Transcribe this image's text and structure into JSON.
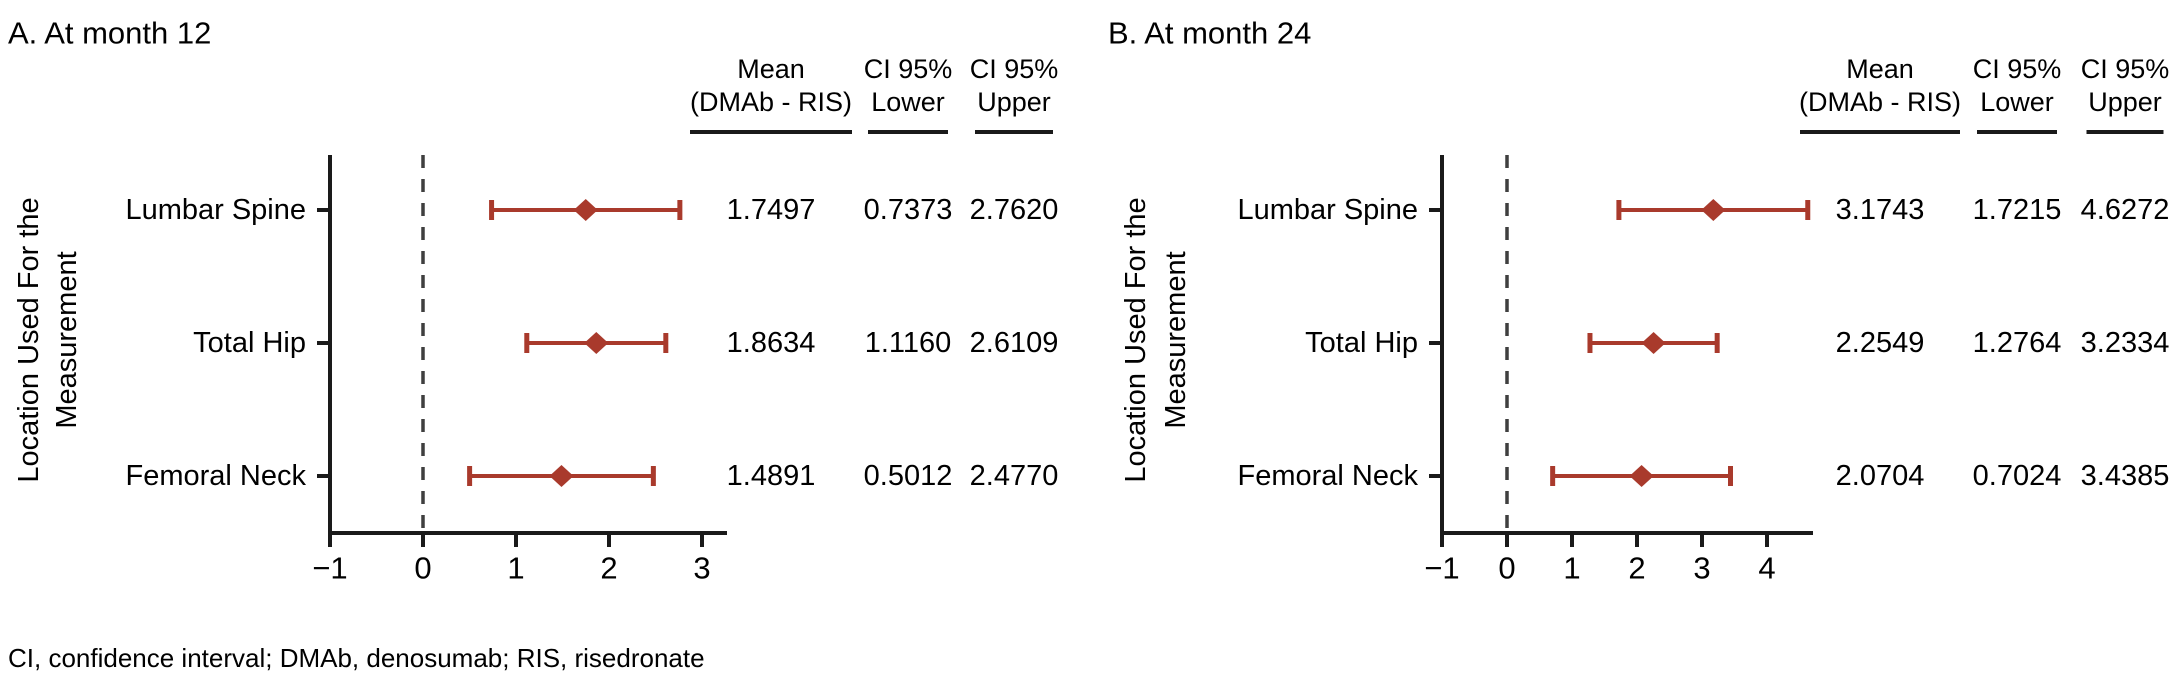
{
  "figure": {
    "footnote": "CI, confidence interval; DMAb, denosumab; RIS, risedronate",
    "y_axis_label_line1": "Location Used For the",
    "y_axis_label_line2": "Measurement",
    "columns": {
      "mean_line1": "Mean",
      "mean_line2": "(DMAb - RIS)",
      "lower_line1": "CI 95%",
      "lower_line2": "Lower",
      "upper_line1": "CI 95%",
      "upper_line2": "Upper"
    },
    "colors": {
      "marker": "#A93A2C",
      "axis": "#1a1a1a",
      "zero_line": "#3f3f3f",
      "text": "#000000"
    }
  },
  "chart_data": [
    {
      "type": "forest",
      "title": "A. At month 12",
      "categories": [
        "Lumbar Spine",
        "Total Hip",
        "Femoral Neck"
      ],
      "means": [
        1.7497,
        1.8634,
        1.4891
      ],
      "ci_lower": [
        0.7373,
        1.116,
        0.5012
      ],
      "ci_upper": [
        2.762,
        2.6109,
        2.477
      ],
      "mean_labels": [
        "1.7497",
        "1.8634",
        "1.4891"
      ],
      "lower_labels": [
        "0.7373",
        "1.1160",
        "0.5012"
      ],
      "upper_labels": [
        "2.7620",
        "2.6109",
        "2.4770"
      ],
      "x_ticks": [
        -1,
        0,
        1,
        2,
        3
      ],
      "x_tick_labels": [
        "−1",
        "0",
        "1",
        "2",
        "3"
      ],
      "zero_reference": 0,
      "xlim": [
        -1,
        3.3
      ],
      "grid": false,
      "legend": "none"
    },
    {
      "type": "forest",
      "title": "B. At month 24",
      "categories": [
        "Lumbar Spine",
        "Total Hip",
        "Femoral Neck"
      ],
      "means": [
        3.1743,
        2.2549,
        2.0704
      ],
      "ci_lower": [
        1.7215,
        1.2764,
        0.7024
      ],
      "ci_upper": [
        4.6272,
        3.2334,
        3.4385
      ],
      "mean_labels": [
        "3.1743",
        "2.2549",
        "2.0704"
      ],
      "lower_labels": [
        "1.7215",
        "1.2764",
        "0.7024"
      ],
      "upper_labels": [
        "4.6272",
        "3.2334",
        "3.4385"
      ],
      "x_ticks": [
        -1,
        0,
        1,
        2,
        3,
        4
      ],
      "x_tick_labels": [
        "−1",
        "0",
        "1",
        "2",
        "3",
        "4"
      ],
      "zero_reference": 0,
      "xlim": [
        -1,
        4.7
      ],
      "grid": false,
      "legend": "none"
    }
  ]
}
